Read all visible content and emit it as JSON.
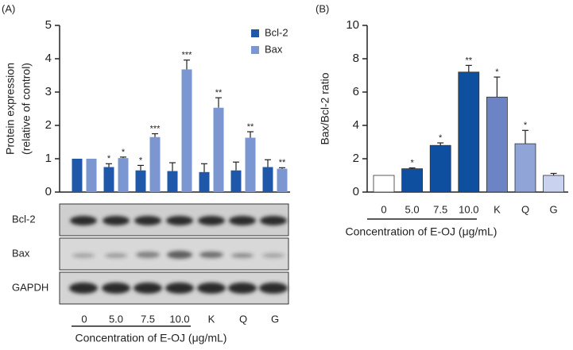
{
  "chart_data": [
    {
      "type": "grouped_bar",
      "panel": "(A)",
      "y_label": [
        "Protein expression",
        "(relative of control)"
      ],
      "x_label": "Concentration of E-OJ (μg/mL)",
      "categories": [
        "0",
        "5.0",
        "7.5",
        "10.0",
        "K",
        "Q",
        "G"
      ],
      "ylim": [
        0,
        5
      ],
      "yticks": [
        0,
        1,
        2,
        3,
        4,
        5
      ],
      "legend": "top-right",
      "series": [
        {
          "name": "Bcl-2",
          "color": "#1f58a8",
          "values": [
            1.0,
            0.75,
            0.65,
            0.63,
            0.6,
            0.65,
            0.75
          ],
          "errors": [
            0,
            0.1,
            0.15,
            0.25,
            0.25,
            0.25,
            0.22
          ],
          "annotations": [
            null,
            "*",
            "*",
            null,
            null,
            null,
            null
          ]
        },
        {
          "name": "Bax",
          "color": "#7b96d0",
          "values": [
            1.0,
            1.02,
            1.65,
            3.68,
            2.53,
            1.63,
            0.7
          ],
          "errors": [
            0,
            0.03,
            0.1,
            0.28,
            0.3,
            0.18,
            0.03
          ],
          "annotations": [
            null,
            "*",
            "***",
            "***",
            "**",
            "**",
            "**"
          ]
        }
      ],
      "blot_rows": [
        "Bcl-2",
        "Bax",
        "GAPDH"
      ]
    },
    {
      "type": "bar",
      "panel": "(B)",
      "y_label": [
        "Bax/Bcl-2 ratio"
      ],
      "x_label": "Concentration of E-OJ (μg/mL)",
      "categories": [
        "0",
        "5.0",
        "7.5",
        "10.0",
        "K",
        "Q",
        "G"
      ],
      "ylim": [
        0,
        10
      ],
      "yticks": [
        0,
        2,
        4,
        6,
        8,
        10
      ],
      "series": [
        {
          "colors": [
            "#ffffff",
            "#0f4fa0",
            "#0f4fa0",
            "#0f4fa0",
            "#6c84c6",
            "#91a4d8",
            "#c9d2ee"
          ],
          "values": [
            1.0,
            1.4,
            2.8,
            7.2,
            5.7,
            2.9,
            1.0
          ],
          "errors": [
            0,
            0.05,
            0.15,
            0.4,
            1.2,
            0.8,
            0.12
          ],
          "annotations": [
            null,
            "*",
            "*",
            "**",
            "*",
            "*",
            null
          ]
        }
      ]
    }
  ]
}
